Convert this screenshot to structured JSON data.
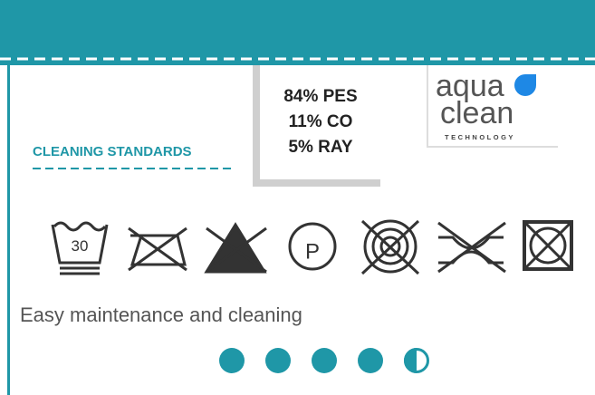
{
  "composition": [
    "84% PES",
    "11% CO",
    "5% RAY"
  ],
  "logo": {
    "line1": "aqua",
    "line2": "clean",
    "tagline": "TECHNOLOGY"
  },
  "heading": "CLEANING STANDARDS",
  "wash_temperature": "30",
  "dry_clean_letter": "P",
  "description": "Easy maintenance and cleaning",
  "rating": {
    "value": 4.5,
    "max": 5,
    "color": "#1f97a7"
  }
}
